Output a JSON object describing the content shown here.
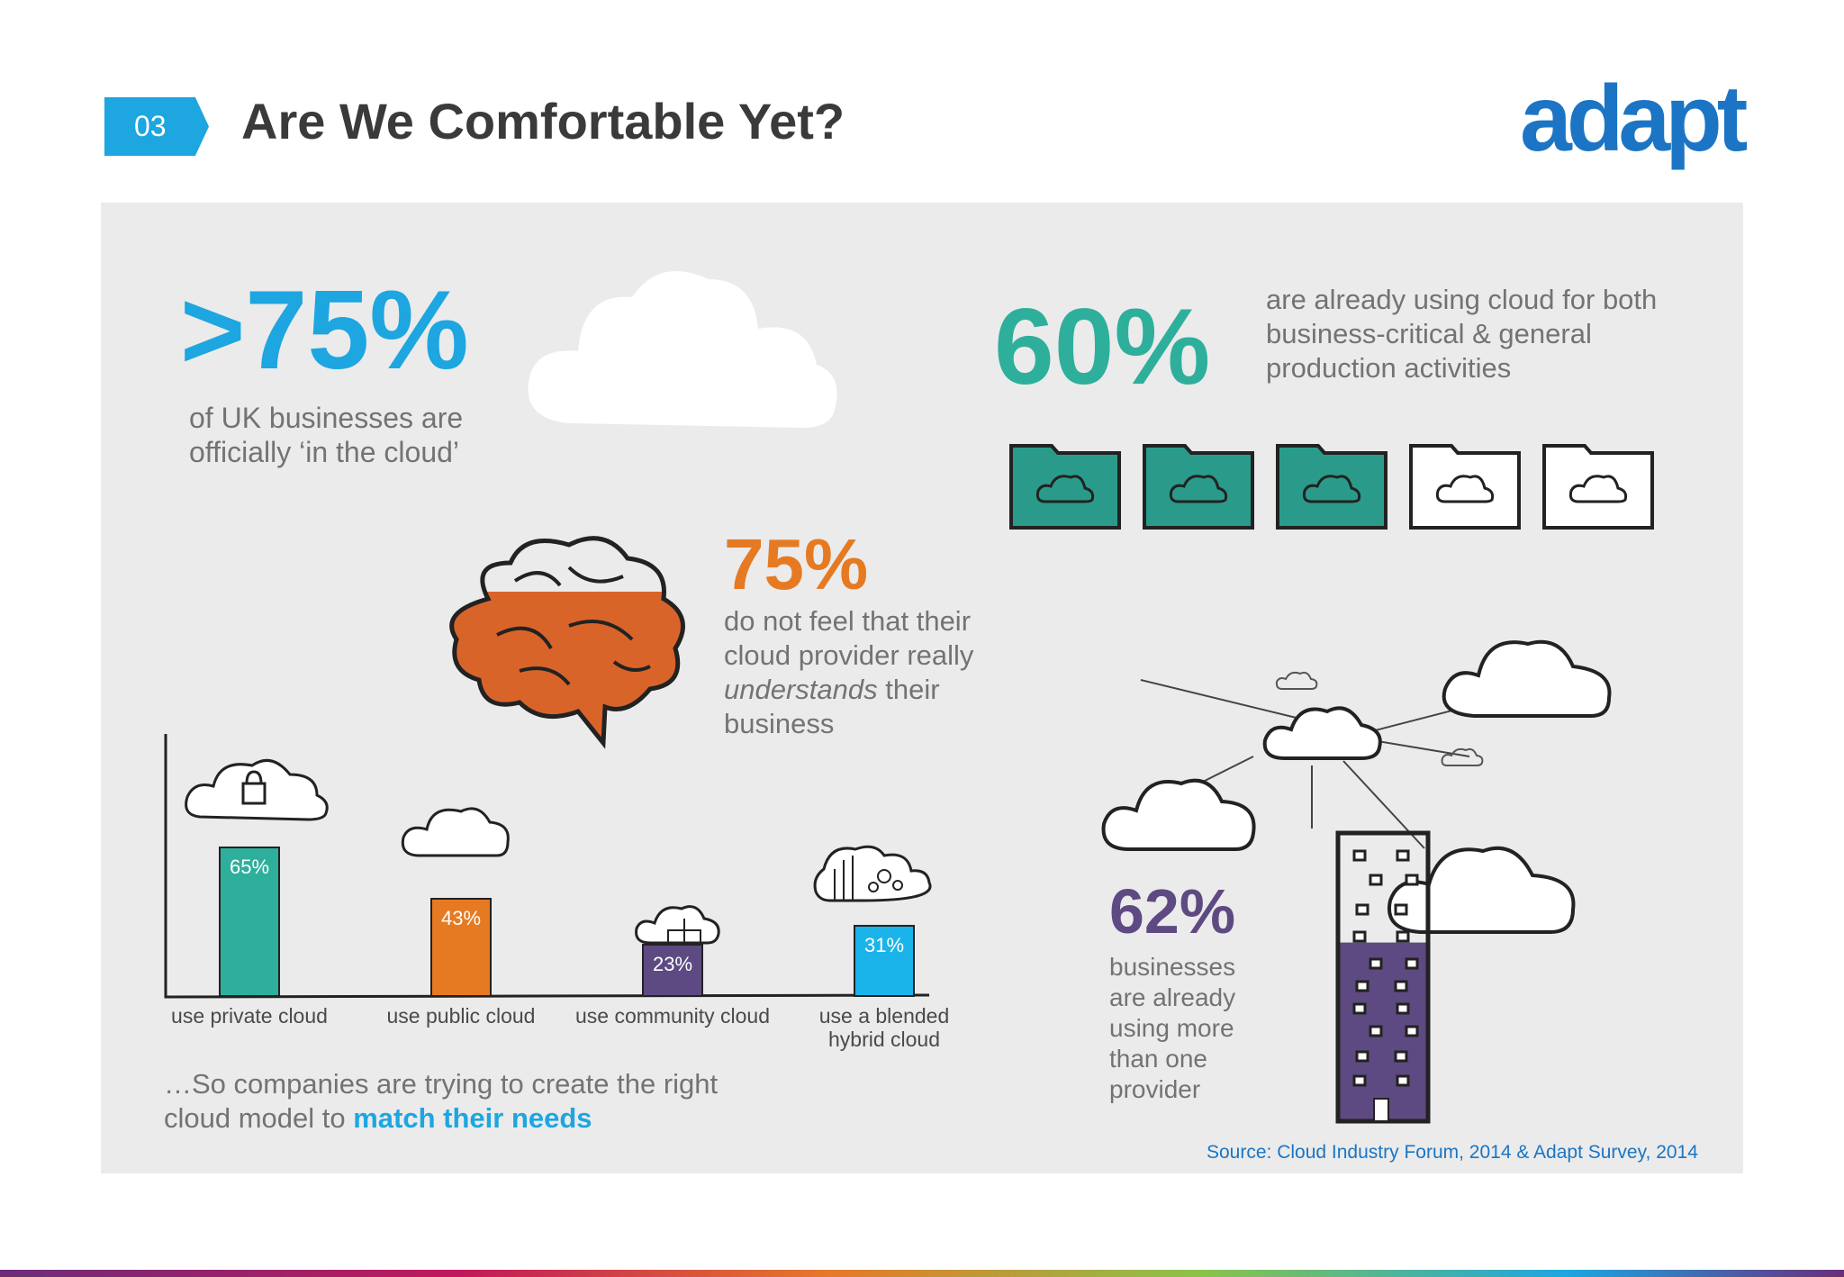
{
  "header": {
    "section_number": "03",
    "title": "Are We Comfortable Yet?",
    "logo_text": "adapt"
  },
  "stats": {
    "cloud_share": {
      "value": ">75%",
      "text_line1": "of UK businesses are",
      "text_line2": "officially ‘in the cloud’"
    },
    "critical_use": {
      "value": "60%",
      "text_line1": "are already using cloud for both",
      "text_line2": "business-critical & general",
      "text_line3": "production activities",
      "filled_folders": 3,
      "total_folders": 5
    },
    "provider_understanding": {
      "value": "75%",
      "line1": "do not feel that their",
      "line2": "cloud provider really",
      "line3_italic": "understands",
      "line3_rest": " their",
      "line4": "business"
    },
    "multi_provider": {
      "value": "62%",
      "lines": [
        "businesses",
        "are already",
        "using more",
        "than one",
        "provider"
      ],
      "fill_fraction": 0.62
    }
  },
  "chart_data": {
    "type": "bar",
    "categories": [
      "use private cloud",
      "use public cloud",
      "use community cloud",
      "use a blended hybrid cloud"
    ],
    "values": [
      65,
      43,
      23,
      31
    ],
    "value_labels": [
      "65%",
      "43%",
      "23%",
      "31%"
    ],
    "colors": [
      "#2eaf9c",
      "#e67a22",
      "#5e4a82",
      "#1ab4ea"
    ],
    "ylim": [
      0,
      100
    ]
  },
  "footer": {
    "conclusion_text": "…So companies are trying to create the right",
    "conclusion_line2": "cloud model to ",
    "conclusion_highlight": "match their needs",
    "source": "Source: Cloud Industry Forum, 2014 & Adapt Survey, 2014"
  },
  "colors": {
    "accent_blue": "#1da6e0",
    "teal": "#2eaf9c",
    "orange": "#e67a22",
    "purple": "#5e4a82",
    "panel_bg": "#ebebeb"
  }
}
